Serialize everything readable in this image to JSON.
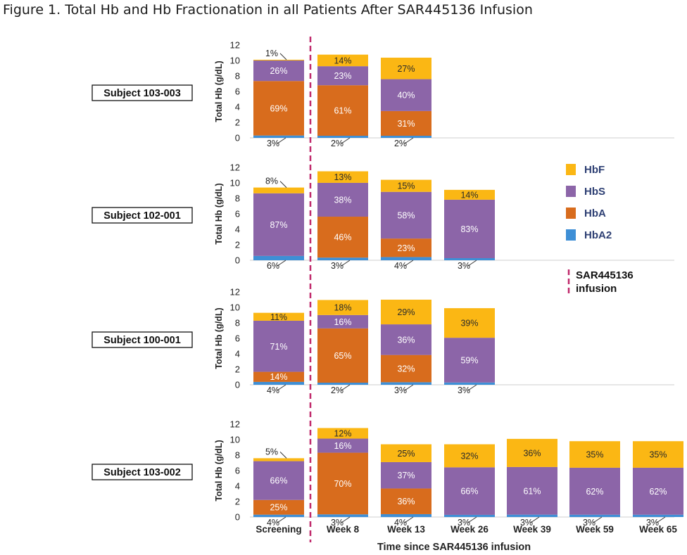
{
  "title": "Figure 1. Total Hb and Hb Fractionation in all Patients After SAR445136 Infusion",
  "chart_data": {
    "type": "bar",
    "stacked": true,
    "ylabel": "Total Hb (g/dL)",
    "ylim": [
      0,
      12
    ],
    "yticks": [
      "0",
      "2",
      "4",
      "6",
      "8",
      "10",
      "12"
    ],
    "xlabel": "Time since  SAR445136  infusion",
    "categories": [
      "Screening",
      "Week 8",
      "Week 13",
      "Week 26",
      "Week 39",
      "Week 59",
      "Week 65"
    ],
    "colors": {
      "HbF": "#FBB714",
      "HbS": "#8C65A8",
      "HbA": "#D86C1D",
      "HbA2": "#3E8FD6",
      "infusion": "#C0296B"
    },
    "legend": {
      "items": [
        {
          "key": "HbF",
          "label": "HbF"
        },
        {
          "key": "HbS",
          "label": "HbS"
        },
        {
          "key": "HbA",
          "label": "HbA"
        },
        {
          "key": "HbA2",
          "label": "HbA2"
        }
      ],
      "infusion_line1": "SAR445136",
      "infusion_line2": "infusion"
    },
    "panels": [
      {
        "subject": "Subject 103-003",
        "bars": [
          {
            "category": "Screening",
            "total": 10.1,
            "segments": [
              {
                "key": "HbA2",
                "pct": 3,
                "label": "3%"
              },
              {
                "key": "HbA",
                "pct": 69,
                "label": "69%"
              },
              {
                "key": "HbS",
                "pct": 26,
                "label": "26%"
              },
              {
                "key": "HbF",
                "pct": 1,
                "label": "1%"
              }
            ]
          },
          {
            "category": "Week 8",
            "total": 10.7,
            "segments": [
              {
                "key": "HbA2",
                "pct": 2,
                "label": "2%"
              },
              {
                "key": "HbA",
                "pct": 61,
                "label": "61%"
              },
              {
                "key": "HbS",
                "pct": 23,
                "label": "23%"
              },
              {
                "key": "HbF",
                "pct": 14,
                "label": "14%"
              }
            ]
          },
          {
            "category": "Week 13",
            "total": 10.3,
            "segments": [
              {
                "key": "HbA2",
                "pct": 2,
                "label": "2%"
              },
              {
                "key": "HbA",
                "pct": 31,
                "label": "31%"
              },
              {
                "key": "HbS",
                "pct": 40,
                "label": "40%"
              },
              {
                "key": "HbF",
                "pct": 27,
                "label": "27%"
              }
            ]
          }
        ]
      },
      {
        "subject": "Subject 102-001",
        "bars": [
          {
            "category": "Screening",
            "total": 9.4,
            "segments": [
              {
                "key": "HbA2",
                "pct": 6,
                "label": "6%"
              },
              {
                "key": "HbS",
                "pct": 87,
                "label": "87%"
              },
              {
                "key": "HbF",
                "pct": 8,
                "label": "8%"
              }
            ]
          },
          {
            "category": "Week 8",
            "total": 11.5,
            "segments": [
              {
                "key": "HbA2",
                "pct": 3,
                "label": "3%"
              },
              {
                "key": "HbA",
                "pct": 46,
                "label": "46%"
              },
              {
                "key": "HbS",
                "pct": 38,
                "label": "38%"
              },
              {
                "key": "HbF",
                "pct": 13,
                "label": "13%"
              }
            ]
          },
          {
            "category": "Week 13",
            "total": 10.4,
            "segments": [
              {
                "key": "HbA2",
                "pct": 4,
                "label": "4%"
              },
              {
                "key": "HbA",
                "pct": 23,
                "label": "23%"
              },
              {
                "key": "HbS",
                "pct": 58,
                "label": "58%"
              },
              {
                "key": "HbF",
                "pct": 15,
                "label": "15%"
              }
            ]
          },
          {
            "category": "Week 26",
            "total": 9.1,
            "segments": [
              {
                "key": "HbA2",
                "pct": 3,
                "label": "3%"
              },
              {
                "key": "HbS",
                "pct": 83,
                "label": "83%"
              },
              {
                "key": "HbF",
                "pct": 14,
                "label": "14%"
              }
            ]
          }
        ]
      },
      {
        "subject": "Subject 100-001",
        "bars": [
          {
            "category": "Screening",
            "total": 9.3,
            "segments": [
              {
                "key": "HbA2",
                "pct": 4,
                "label": "4%"
              },
              {
                "key": "HbA",
                "pct": 14,
                "label": "14%"
              },
              {
                "key": "HbS",
                "pct": 71,
                "label": "71%"
              },
              {
                "key": "HbF",
                "pct": 11,
                "label": "11%"
              }
            ]
          },
          {
            "category": "Week 8",
            "total": 10.9,
            "segments": [
              {
                "key": "HbA2",
                "pct": 2,
                "label": "2%"
              },
              {
                "key": "HbA",
                "pct": 65,
                "label": "65%"
              },
              {
                "key": "HbS",
                "pct": 16,
                "label": "16%"
              },
              {
                "key": "HbF",
                "pct": 18,
                "label": "18%"
              }
            ]
          },
          {
            "category": "Week 13",
            "total": 11.0,
            "segments": [
              {
                "key": "HbA2",
                "pct": 3,
                "label": "3%"
              },
              {
                "key": "HbA",
                "pct": 32,
                "label": "32%"
              },
              {
                "key": "HbS",
                "pct": 36,
                "label": "36%"
              },
              {
                "key": "HbF",
                "pct": 29,
                "label": "29%"
              }
            ]
          },
          {
            "category": "Week 26",
            "total": 9.9,
            "segments": [
              {
                "key": "HbA2",
                "pct": 3,
                "label": "3%"
              },
              {
                "key": "HbS",
                "pct": 59,
                "label": "59%"
              },
              {
                "key": "HbF",
                "pct": 39,
                "label": "39%"
              }
            ]
          }
        ]
      },
      {
        "subject": "Subject 103-002",
        "bars": [
          {
            "category": "Screening",
            "total": 7.6,
            "segments": [
              {
                "key": "HbA2",
                "pct": 4,
                "label": "4%"
              },
              {
                "key": "HbA",
                "pct": 25,
                "label": "25%"
              },
              {
                "key": "HbS",
                "pct": 66,
                "label": "66%"
              },
              {
                "key": "HbF",
                "pct": 5,
                "label": "5%"
              }
            ]
          },
          {
            "category": "Week 8",
            "total": 11.5,
            "segments": [
              {
                "key": "HbA2",
                "pct": 3,
                "label": "3%"
              },
              {
                "key": "HbA",
                "pct": 70,
                "label": "70%"
              },
              {
                "key": "HbS",
                "pct": 16,
                "label": "16%"
              },
              {
                "key": "HbF",
                "pct": 12,
                "label": "12%"
              }
            ]
          },
          {
            "category": "Week 13",
            "total": 9.4,
            "segments": [
              {
                "key": "HbA2",
                "pct": 4,
                "label": "4%"
              },
              {
                "key": "HbA",
                "pct": 36,
                "label": "36%"
              },
              {
                "key": "HbS",
                "pct": 37,
                "label": "37%"
              },
              {
                "key": "HbF",
                "pct": 25,
                "label": "25%"
              }
            ]
          },
          {
            "category": "Week 26",
            "total": 9.4,
            "segments": [
              {
                "key": "HbA2",
                "pct": 3,
                "label": "3%"
              },
              {
                "key": "HbS",
                "pct": 66,
                "label": "66%"
              },
              {
                "key": "HbF",
                "pct": 32,
                "label": "32%"
              }
            ]
          },
          {
            "category": "Week 39",
            "total": 10.1,
            "segments": [
              {
                "key": "HbA2",
                "pct": 3,
                "label": "3%"
              },
              {
                "key": "HbS",
                "pct": 61,
                "label": "61%"
              },
              {
                "key": "HbF",
                "pct": 36,
                "label": "36%"
              }
            ]
          },
          {
            "category": "Week 59",
            "total": 9.8,
            "segments": [
              {
                "key": "HbA2",
                "pct": 3,
                "label": "3%"
              },
              {
                "key": "HbS",
                "pct": 62,
                "label": "62%"
              },
              {
                "key": "HbF",
                "pct": 35,
                "label": "35%"
              }
            ]
          },
          {
            "category": "Week 65",
            "total": 9.8,
            "segments": [
              {
                "key": "HbA2",
                "pct": 3,
                "label": "3%"
              },
              {
                "key": "HbS",
                "pct": 62,
                "label": "62%"
              },
              {
                "key": "HbF",
                "pct": 35,
                "label": "35%"
              }
            ]
          }
        ]
      }
    ]
  }
}
